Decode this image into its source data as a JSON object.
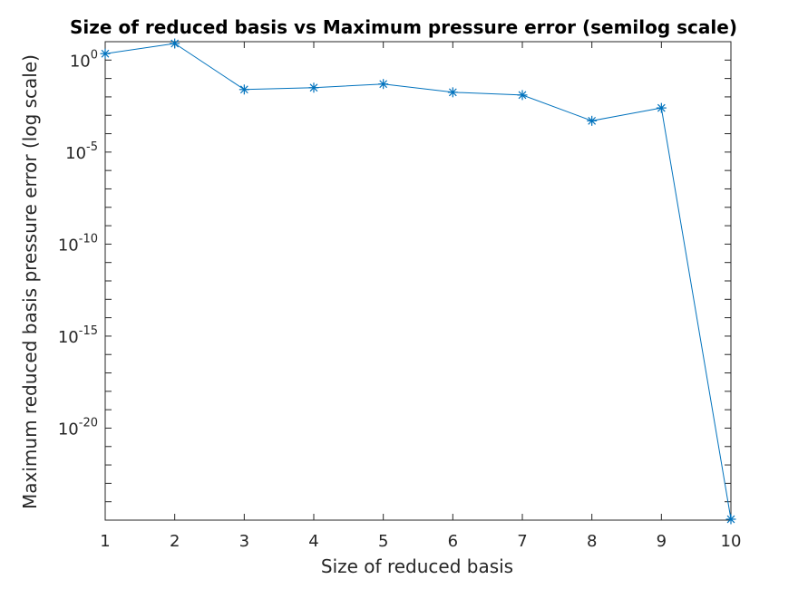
{
  "chart_data": {
    "type": "line",
    "title": "Size of reduced basis vs Maximum pressure error (semilog scale)",
    "xlabel": "Size of reduced basis",
    "ylabel": "Maximum reduced basis pressure error (log scale)",
    "y_scale": "log",
    "marker": "asterisk",
    "grid": false,
    "xlim": [
      1,
      10
    ],
    "ylim_log10": [
      -25,
      1
    ],
    "x_ticks": [
      "1",
      "2",
      "3",
      "4",
      "5",
      "6",
      "7",
      "8",
      "9",
      "10"
    ],
    "y_ticks": [
      {
        "base": "10",
        "exp": "0",
        "log10": 0
      },
      {
        "base": "10",
        "exp": "-5",
        "log10": -5
      },
      {
        "base": "10",
        "exp": "-10",
        "log10": -10
      },
      {
        "base": "10",
        "exp": "-15",
        "log10": -15
      },
      {
        "base": "10",
        "exp": "-20",
        "log10": -20
      }
    ],
    "series": [
      {
        "color": "#0072BD",
        "x": [
          1,
          2,
          3,
          4,
          5,
          6,
          7,
          8,
          9,
          10
        ],
        "log10_y": [
          0.35,
          0.9,
          -1.6,
          -1.5,
          -1.3,
          -1.75,
          -1.9,
          -3.3,
          -2.6,
          -24.95
        ]
      }
    ]
  }
}
